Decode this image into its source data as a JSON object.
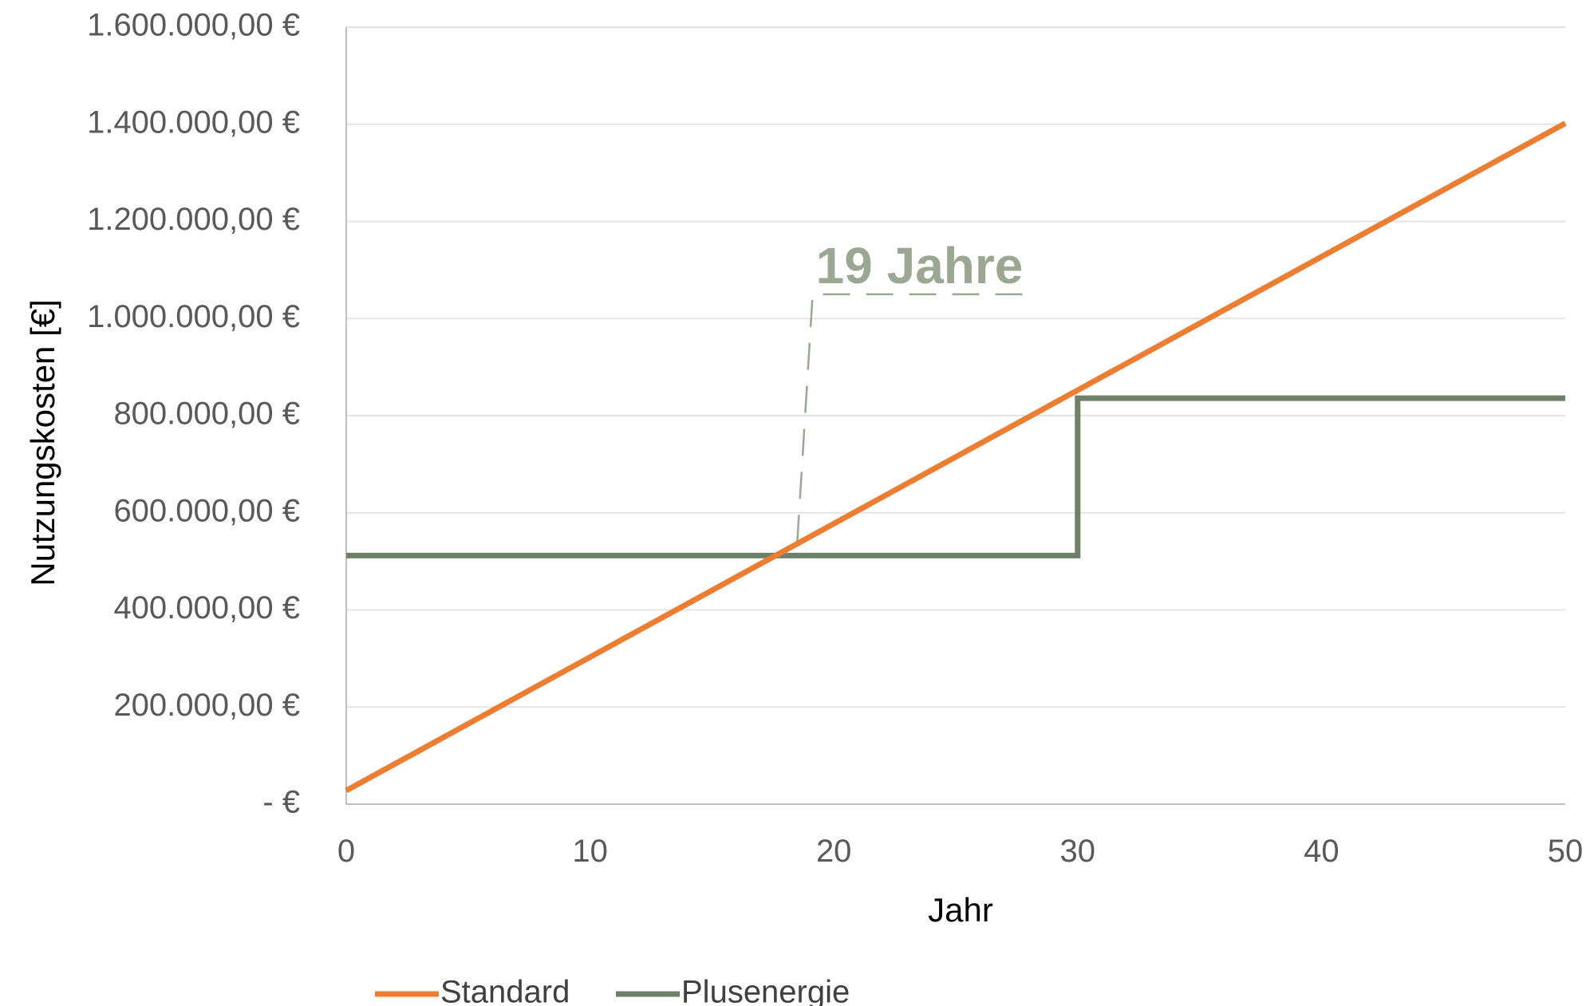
{
  "chart_data": {
    "type": "line",
    "title": "",
    "xlabel": "Jahr",
    "ylabel": "Nutzungskosten [€]",
    "xlim": [
      0,
      50
    ],
    "ylim": [
      0,
      1600000
    ],
    "x_ticks": [
      "0",
      "10",
      "20",
      "30",
      "40",
      "50"
    ],
    "x_tick_values": [
      0,
      10,
      20,
      30,
      40,
      50
    ],
    "y_ticks": [
      "-   €",
      "200.000,00 €",
      "400.000,00 €",
      "600.000,00 €",
      "800.000,00 €",
      "1.000.000,00 €",
      "1.200.000,00 €",
      "1.400.000,00 €",
      "1.600.000,00 €"
    ],
    "y_tick_values": [
      0,
      200000,
      400000,
      600000,
      800000,
      1000000,
      1200000,
      1400000,
      1600000
    ],
    "grid": "horizontal",
    "legend_position": "bottom",
    "series": [
      {
        "name": "Standard",
        "color": "#ED7D31",
        "points": [
          [
            0,
            28000
          ],
          [
            50,
            1402000
          ]
        ]
      },
      {
        "name": "Plusenergie",
        "color": "#6F806A",
        "points": [
          [
            0,
            512000
          ],
          [
            30,
            512000
          ],
          [
            30,
            836000
          ],
          [
            50,
            836000
          ]
        ]
      }
    ],
    "annotation": {
      "text": "19 Jahre",
      "color": "#9AA893",
      "anchor": [
        18.5,
        540000
      ],
      "label_point": [
        19,
        1050000
      ]
    }
  }
}
